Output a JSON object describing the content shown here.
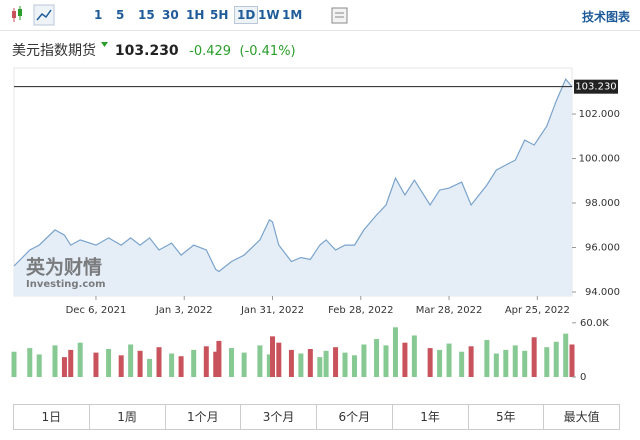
{
  "toolbar": {
    "intervals": [
      "1",
      "5",
      "15",
      "30",
      "1H",
      "5H",
      "1D",
      "1W",
      "1M"
    ],
    "selected": 6,
    "tech_chart": "技术图表"
  },
  "header": {
    "name": "美元指数期货",
    "price": "103.230",
    "change": "-0.429",
    "change_pct": "(-0.41%)"
  },
  "watermark": {
    "brand": "英为财情",
    "site": "Investing.com"
  },
  "chart_data": [
    {
      "type": "area",
      "color": "#7aa3cb",
      "fill": "#e5eef7",
      "x": [
        "2021-11-10",
        "2021-11-15",
        "2021-11-18",
        "2021-11-23",
        "2021-11-26",
        "2021-11-28",
        "2021-12-01",
        "2021-12-06",
        "2021-12-10",
        "2021-12-14",
        "2021-12-17",
        "2021-12-20",
        "2021-12-23",
        "2021-12-26",
        "2021-12-30",
        "2022-01-02",
        "2022-01-06",
        "2022-01-10",
        "2022-01-13",
        "2022-01-14",
        "2022-01-18",
        "2022-01-22",
        "2022-01-27",
        "2022-01-30",
        "2022-01-31",
        "2022-02-02",
        "2022-02-06",
        "2022-02-09",
        "2022-02-12",
        "2022-02-15",
        "2022-02-17",
        "2022-02-20",
        "2022-02-23",
        "2022-02-26",
        "2022-03-01",
        "2022-03-05",
        "2022-03-08",
        "2022-03-11",
        "2022-03-14",
        "2022-03-17",
        "2022-03-22",
        "2022-03-25",
        "2022-03-28",
        "2022-04-01",
        "2022-04-04",
        "2022-04-09",
        "2022-04-12",
        "2022-04-15",
        "2022-04-18",
        "2022-04-21",
        "2022-04-24",
        "2022-04-28",
        "2022-05-01",
        "2022-05-04",
        "2022-05-06"
      ],
      "series": [
        {
          "values": [
            95.17,
            95.89,
            96.11,
            96.79,
            96.56,
            96.11,
            96.34,
            96.11,
            96.43,
            96.11,
            96.43,
            96.11,
            96.43,
            95.89,
            96.2,
            95.66,
            96.11,
            95.89,
            95.01,
            94.92,
            95.37,
            95.66,
            96.34,
            97.24,
            97.15,
            96.11,
            95.37,
            95.55,
            95.46,
            96.11,
            96.34,
            95.89,
            96.11,
            96.11,
            96.79,
            97.46,
            97.91,
            99.12,
            98.36,
            99.03,
            97.91,
            98.58,
            98.67,
            98.94,
            97.91,
            98.81,
            99.48,
            99.71,
            99.93,
            100.83,
            100.61,
            101.46,
            102.58,
            103.57,
            103.23
          ]
        }
      ],
      "xlim": [
        "2021-11-10",
        "2022-05-06"
      ],
      "xticks": [
        {
          "value": "2021-12-06",
          "label": "Dec 6, 2021"
        },
        {
          "value": "2022-01-03",
          "label": "Jan 3, 2022"
        },
        {
          "value": "2022-01-31",
          "label": "Jan 31, 2022"
        },
        {
          "value": "2022-02-28",
          "label": "Feb 28, 2022"
        },
        {
          "value": "2022-03-28",
          "label": "Mar 28, 2022"
        },
        {
          "value": "2022-04-25",
          "label": "Apr 25, 2022"
        }
      ],
      "ylim": [
        93.82,
        104.07
      ],
      "yticks": [
        {
          "value": 94,
          "label": "94.000"
        },
        {
          "value": 96,
          "label": "96.000"
        },
        {
          "value": 98,
          "label": "98.000"
        },
        {
          "value": 100,
          "label": "100.000"
        },
        {
          "value": 102,
          "label": "102.000"
        }
      ],
      "last_price": {
        "value": 103.23,
        "label": "103.230"
      }
    },
    {
      "type": "bar",
      "up_color": "#86c993",
      "down_color": "#c9535c",
      "x": [
        "2021-11-10",
        "2021-11-15",
        "2021-11-18",
        "2021-11-23",
        "2021-11-26",
        "2021-11-28",
        "2021-12-01",
        "2021-12-06",
        "2021-12-10",
        "2021-12-14",
        "2021-12-17",
        "2021-12-20",
        "2021-12-23",
        "2021-12-26",
        "2021-12-30",
        "2022-01-02",
        "2022-01-06",
        "2022-01-10",
        "2022-01-13",
        "2022-01-14",
        "2022-01-18",
        "2022-01-22",
        "2022-01-27",
        "2022-01-30",
        "2022-01-31",
        "2022-02-02",
        "2022-02-06",
        "2022-02-09",
        "2022-02-12",
        "2022-02-15",
        "2022-02-17",
        "2022-02-20",
        "2022-02-23",
        "2022-02-26",
        "2022-03-01",
        "2022-03-05",
        "2022-03-08",
        "2022-03-11",
        "2022-03-14",
        "2022-03-17",
        "2022-03-22",
        "2022-03-25",
        "2022-03-28",
        "2022-04-01",
        "2022-04-04",
        "2022-04-09",
        "2022-04-12",
        "2022-04-15",
        "2022-04-18",
        "2022-04-21",
        "2022-04-24",
        "2022-04-28",
        "2022-05-01",
        "2022-05-04",
        "2022-05-06"
      ],
      "values": [
        28000,
        32000,
        25000,
        35000,
        22000,
        30000,
        38000,
        27000,
        31000,
        24000,
        36000,
        29000,
        20000,
        33000,
        26000,
        23000,
        30000,
        34000,
        28000,
        40000,
        32000,
        27000,
        35000,
        25000,
        45000,
        38000,
        30000,
        26000,
        31000,
        22000,
        29000,
        33000,
        27000,
        24000,
        36000,
        42000,
        35000,
        55000,
        38000,
        46000,
        32000,
        30000,
        37000,
        28000,
        34000,
        41000,
        26000,
        30000,
        35000,
        29000,
        44000,
        33000,
        39000,
        48000,
        36000
      ],
      "xlim": [
        "2021-11-10",
        "2022-05-06"
      ],
      "ylim": [
        0,
        62000
      ],
      "yticks": [
        0,
        {
          "value": 60000,
          "label": "60.0K"
        }
      ]
    }
  ],
  "ranges": [
    "1日",
    "1周",
    "1个月",
    "3个月",
    "6个月",
    "1年",
    "5年",
    "最大值"
  ]
}
